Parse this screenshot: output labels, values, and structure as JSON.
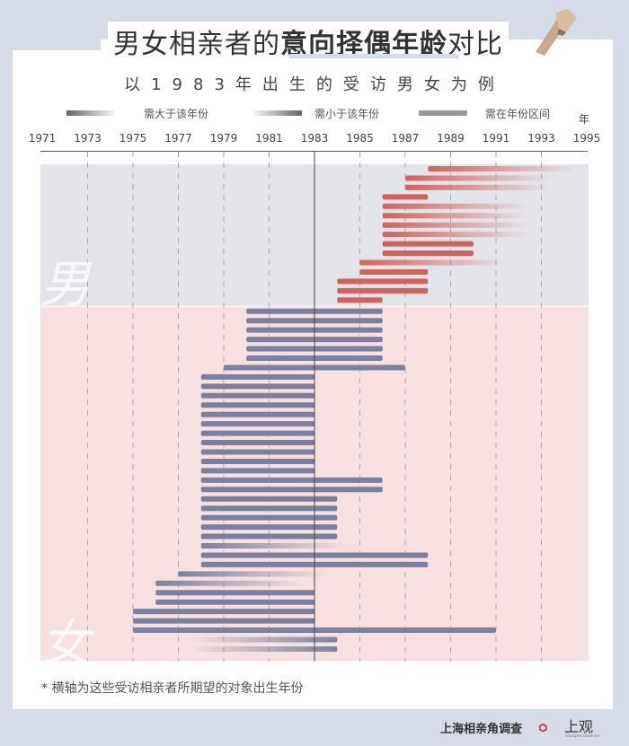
{
  "header": {
    "title_plain": "男女相亲者的",
    "title_bold": "意向择偶年龄",
    "title_tail": "对比",
    "subtitle": "以1983年出生的受访男女为例"
  },
  "legend": {
    "greater": "需大于该年份",
    "less": "需小于该年份",
    "range": "需在年份区间",
    "unit": "年"
  },
  "footer": {
    "note": "* 横轴为这些受访相亲者所期望的对象出生年份",
    "source": "上海相亲角调查",
    "logo_text": "上观",
    "logo_sub": "Shanghai Observer"
  },
  "colors": {
    "male_bar": "#d2615c",
    "female_bar": "#7a809d",
    "male_panel": "#e3e4ea",
    "female_panel": "#f6e0e0",
    "background": "#d5dce8"
  },
  "chart_data": {
    "type": "bar",
    "orientation": "horizontal-range",
    "title": "男女相亲者的意向择偶年龄对比",
    "subtitle": "以1983年出生的受访男女为例",
    "xlabel": "年",
    "xlim": [
      1971,
      1995
    ],
    "xticks": [
      1971,
      1973,
      1975,
      1977,
      1979,
      1981,
      1983,
      1985,
      1987,
      1989,
      1991,
      1993,
      1995
    ],
    "reference_year": 1983,
    "grid": true,
    "legend_position": "top",
    "legend": [
      {
        "kind": "gt",
        "label": "需大于该年份"
      },
      {
        "kind": "lt",
        "label": "需小于该年份"
      },
      {
        "kind": "range",
        "label": "需在年份区间"
      }
    ],
    "groups": [
      {
        "name": "男",
        "rows": [
          {
            "kind": "gt",
            "from": 1988
          },
          {
            "kind": "gt",
            "from": 1987
          },
          {
            "kind": "gt",
            "from": 1987
          },
          {
            "kind": "range",
            "from": 1986,
            "to": 1988
          },
          {
            "kind": "gt",
            "from": 1986
          },
          {
            "kind": "gt",
            "from": 1986
          },
          {
            "kind": "gt",
            "from": 1986
          },
          {
            "kind": "gt",
            "from": 1986
          },
          {
            "kind": "range",
            "from": 1986,
            "to": 1990
          },
          {
            "kind": "range",
            "from": 1986,
            "to": 1990
          },
          {
            "kind": "gt",
            "from": 1985
          },
          {
            "kind": "range",
            "from": 1985,
            "to": 1988
          },
          {
            "kind": "range",
            "from": 1984,
            "to": 1988
          },
          {
            "kind": "range",
            "from": 1984,
            "to": 1988
          },
          {
            "kind": "range",
            "from": 1984,
            "to": 1986
          }
        ]
      },
      {
        "name": "女",
        "rows": [
          {
            "kind": "range",
            "from": 1980,
            "to": 1986
          },
          {
            "kind": "range",
            "from": 1980,
            "to": 1986
          },
          {
            "kind": "range",
            "from": 1980,
            "to": 1986
          },
          {
            "kind": "range",
            "from": 1980,
            "to": 1986
          },
          {
            "kind": "range",
            "from": 1980,
            "to": 1986
          },
          {
            "kind": "range",
            "from": 1980,
            "to": 1986
          },
          {
            "kind": "range",
            "from": 1979,
            "to": 1987
          },
          {
            "kind": "range",
            "from": 1978,
            "to": 1983
          },
          {
            "kind": "range",
            "from": 1978,
            "to": 1983
          },
          {
            "kind": "range",
            "from": 1978,
            "to": 1983
          },
          {
            "kind": "range",
            "from": 1978,
            "to": 1983
          },
          {
            "kind": "range",
            "from": 1978,
            "to": 1983
          },
          {
            "kind": "range",
            "from": 1978,
            "to": 1983
          },
          {
            "kind": "range",
            "from": 1978,
            "to": 1983
          },
          {
            "kind": "range",
            "from": 1978,
            "to": 1983
          },
          {
            "kind": "range",
            "from": 1978,
            "to": 1983
          },
          {
            "kind": "range",
            "from": 1978,
            "to": 1983
          },
          {
            "kind": "range",
            "from": 1978,
            "to": 1983
          },
          {
            "kind": "range",
            "from": 1978,
            "to": 1986
          },
          {
            "kind": "range",
            "from": 1978,
            "to": 1986
          },
          {
            "kind": "range",
            "from": 1978,
            "to": 1984
          },
          {
            "kind": "range",
            "from": 1978,
            "to": 1984
          },
          {
            "kind": "range",
            "from": 1978,
            "to": 1984
          },
          {
            "kind": "range",
            "from": 1978,
            "to": 1984
          },
          {
            "kind": "range",
            "from": 1978,
            "to": 1984
          },
          {
            "kind": "gt",
            "from": 1978
          },
          {
            "kind": "range",
            "from": 1978,
            "to": 1988
          },
          {
            "kind": "range",
            "from": 1978,
            "to": 1988
          },
          {
            "kind": "gt",
            "from": 1977
          },
          {
            "kind": "gt",
            "from": 1976
          },
          {
            "kind": "range",
            "from": 1976,
            "to": 1983
          },
          {
            "kind": "range",
            "from": 1976,
            "to": 1983
          },
          {
            "kind": "range",
            "from": 1975,
            "to": 1983
          },
          {
            "kind": "range",
            "from": 1975,
            "to": 1983
          },
          {
            "kind": "range",
            "from": 1975,
            "to": 1991
          },
          {
            "kind": "lt",
            "to": 1984
          },
          {
            "kind": "lt",
            "to": 1984
          }
        ]
      }
    ]
  }
}
